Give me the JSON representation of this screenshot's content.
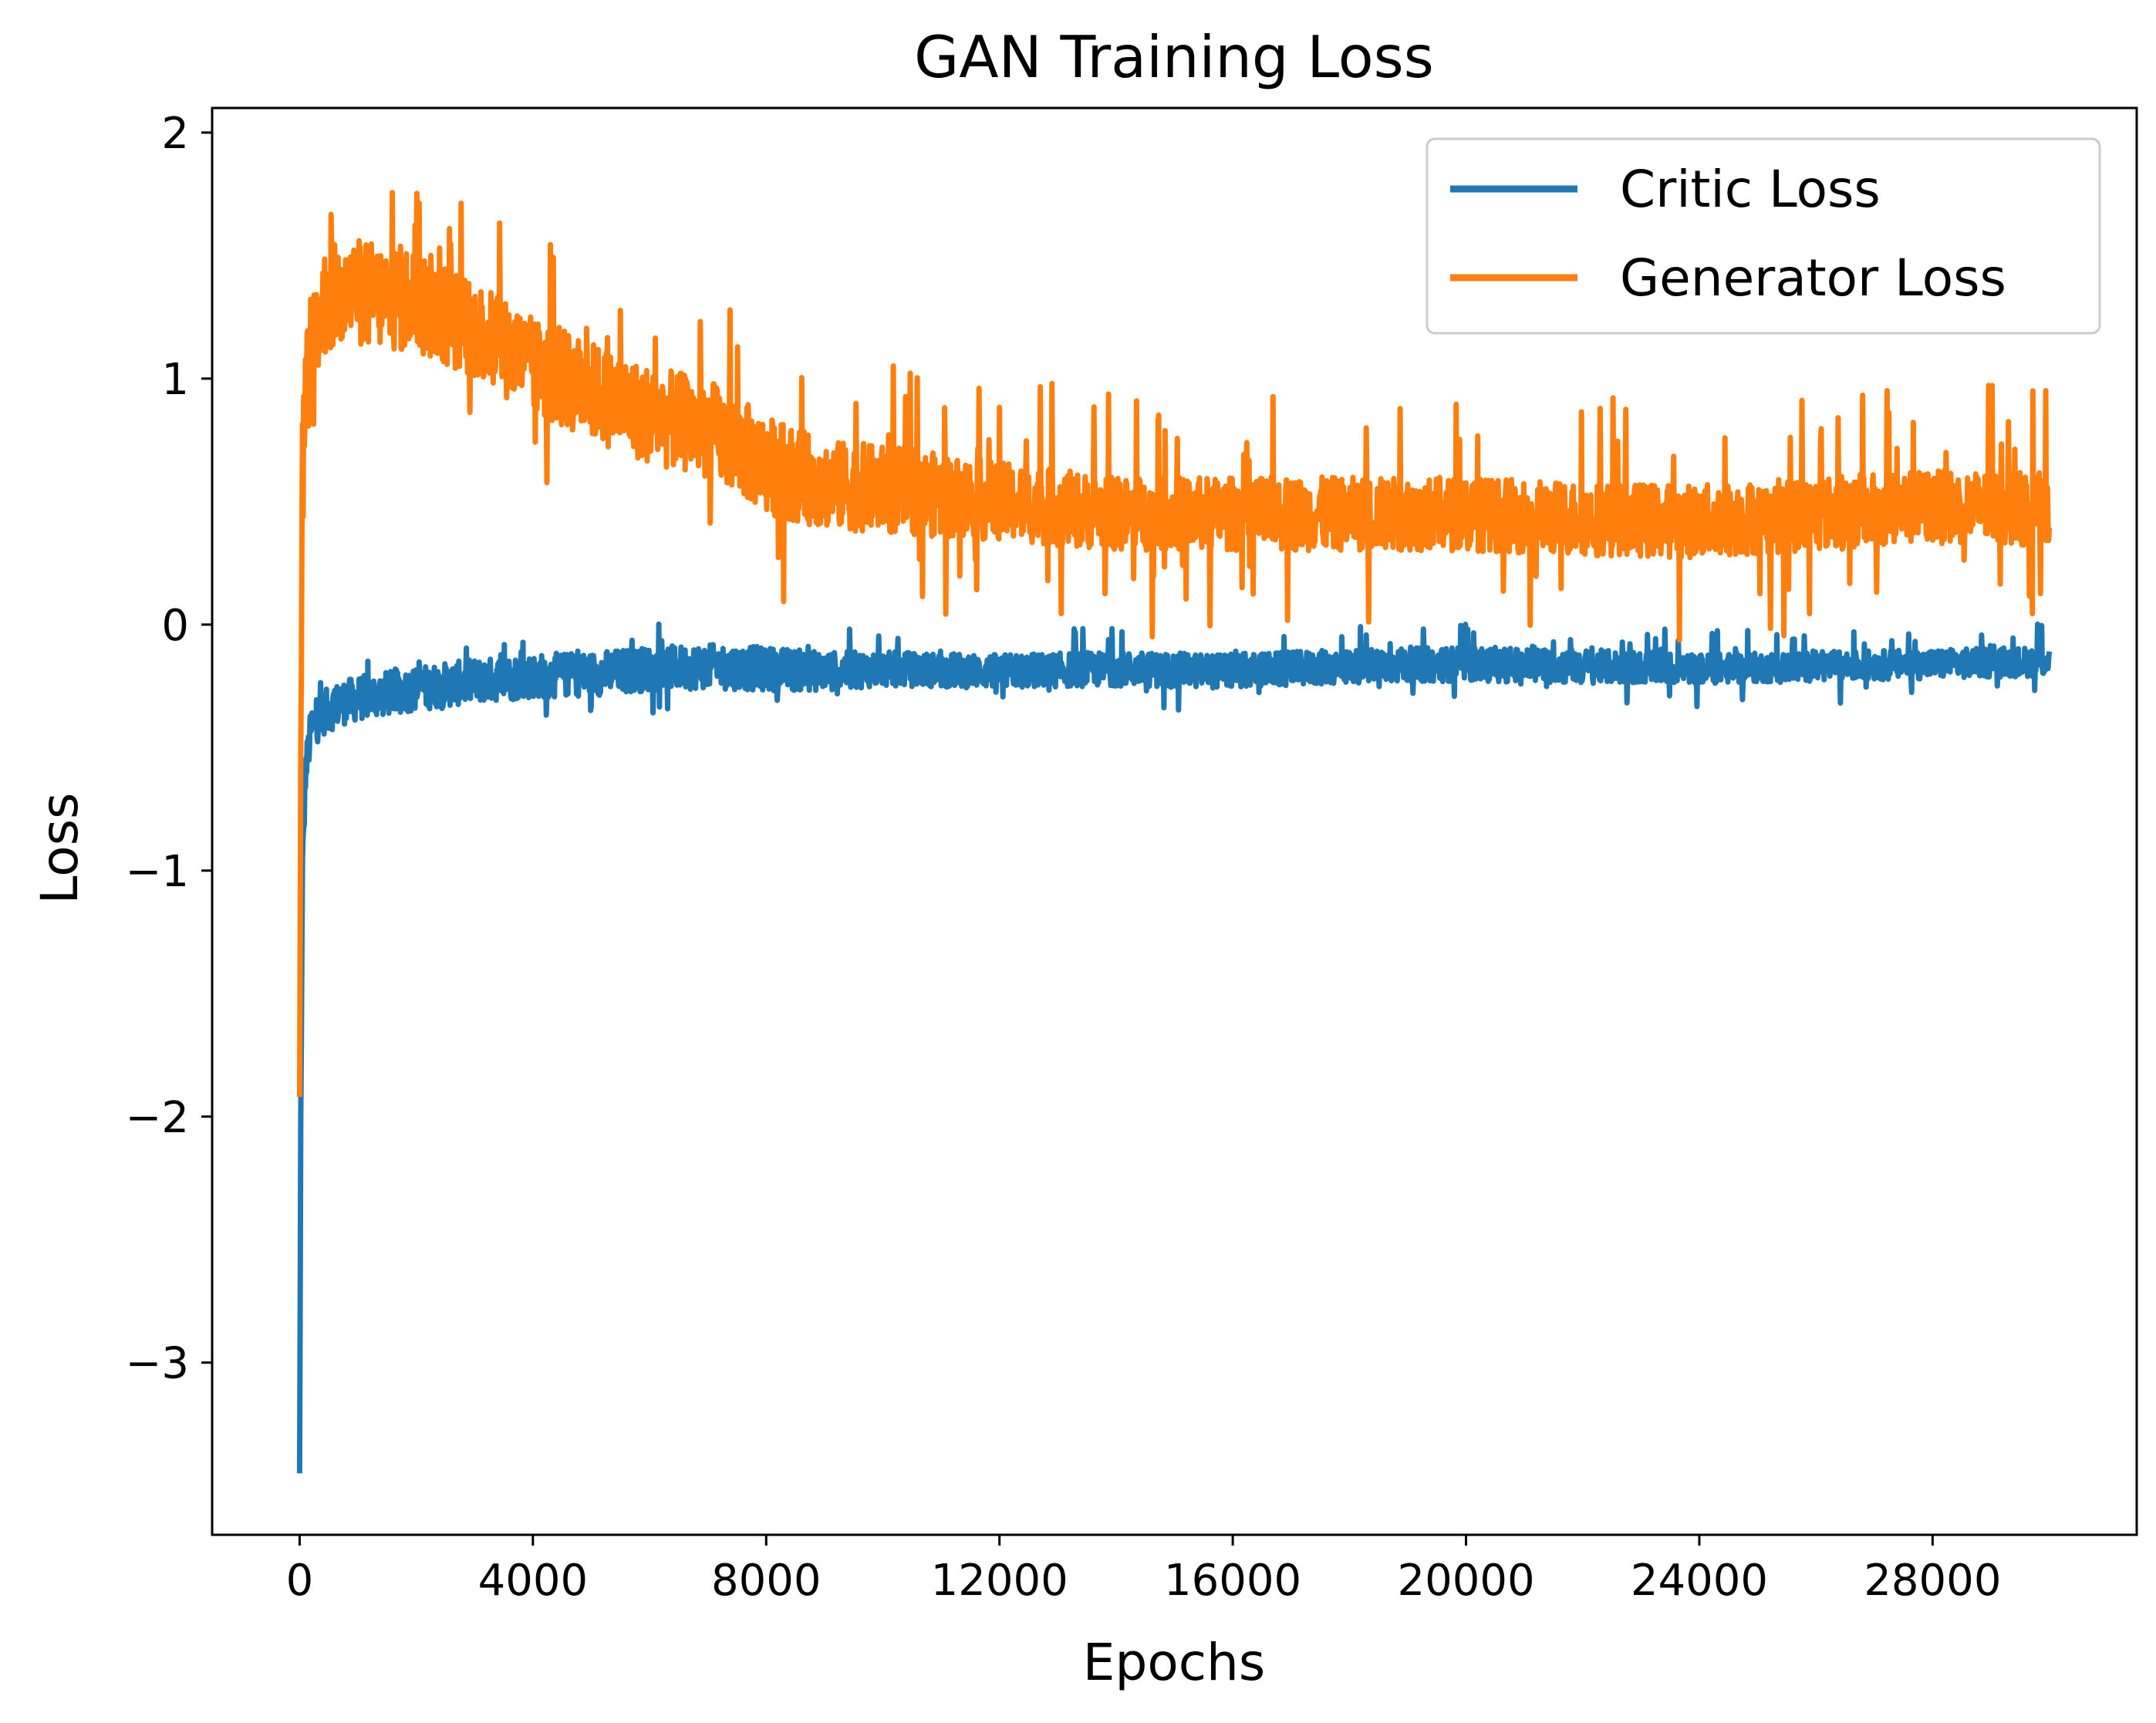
{
  "chart_data": {
    "type": "line",
    "title": "GAN Training Loss",
    "xlabel": "Epochs",
    "ylabel": "Loss",
    "xlim": [
      -1500,
      31500
    ],
    "ylim": [
      -3.7,
      2.1
    ],
    "x_ticks": [
      0,
      4000,
      8000,
      12000,
      16000,
      20000,
      24000,
      28000
    ],
    "x_tick_labels": [
      "0",
      "4000",
      "8000",
      "12000",
      "16000",
      "20000",
      "24000",
      "28000"
    ],
    "y_ticks": [
      -3,
      -2,
      -1,
      0,
      1,
      2
    ],
    "y_tick_labels": [
      "−3",
      "−2",
      "−1",
      "0",
      "1",
      "2"
    ],
    "grid": false,
    "legend": {
      "position": "top-right",
      "entries": [
        "Critic Loss",
        "Generator Loss"
      ]
    },
    "series": [
      {
        "name": "Critic Loss",
        "color": "#1f77b4",
        "x": [
          0,
          20,
          50,
          100,
          200,
          400,
          700,
          1000,
          1500,
          2000,
          3000,
          4000,
          5000,
          6000,
          7000,
          8000,
          9000,
          10000,
          12000,
          14000,
          16000,
          18000,
          20000,
          22000,
          24000,
          26000,
          28000,
          30000
        ],
        "values": [
          -3.45,
          -2.0,
          -1.0,
          -0.6,
          -0.42,
          -0.36,
          -0.32,
          -0.3,
          -0.28,
          -0.26,
          -0.23,
          -0.21,
          -0.2,
          -0.18,
          -0.17,
          -0.18,
          -0.19,
          -0.18,
          -0.19,
          -0.18,
          -0.19,
          -0.17,
          -0.16,
          -0.17,
          -0.18,
          -0.17,
          -0.16,
          -0.15
        ],
        "noise": [
          0.0,
          0.0,
          0.1,
          0.08,
          0.09,
          0.09,
          0.09,
          0.09,
          0.09,
          0.09,
          0.09,
          0.09,
          0.09,
          0.09,
          0.09,
          0.09,
          0.08,
          0.07,
          0.07,
          0.07,
          0.07,
          0.07,
          0.07,
          0.07,
          0.06,
          0.06,
          0.06,
          0.06
        ]
      },
      {
        "name": "Generator Loss",
        "color": "#ff7f0e",
        "x": [
          0,
          20,
          50,
          100,
          200,
          400,
          700,
          1000,
          1500,
          2000,
          3000,
          4000,
          5000,
          6000,
          7000,
          8000,
          9000,
          10000,
          12000,
          14000,
          16000,
          18000,
          20000,
          22000,
          24000,
          26000,
          28000,
          30000
        ],
        "values": [
          -1.92,
          -0.5,
          0.6,
          0.9,
          1.15,
          1.3,
          1.35,
          1.35,
          1.33,
          1.32,
          1.2,
          1.05,
          0.95,
          0.85,
          0.8,
          0.65,
          0.57,
          0.55,
          0.5,
          0.45,
          0.45,
          0.45,
          0.45,
          0.43,
          0.42,
          0.45,
          0.48,
          0.47
        ],
        "noise": [
          0.0,
          0.0,
          0.3,
          0.25,
          0.22,
          0.22,
          0.22,
          0.22,
          0.22,
          0.22,
          0.2,
          0.2,
          0.2,
          0.2,
          0.2,
          0.2,
          0.18,
          0.18,
          0.16,
          0.15,
          0.15,
          0.15,
          0.15,
          0.15,
          0.15,
          0.15,
          0.15,
          0.15
        ]
      }
    ]
  }
}
